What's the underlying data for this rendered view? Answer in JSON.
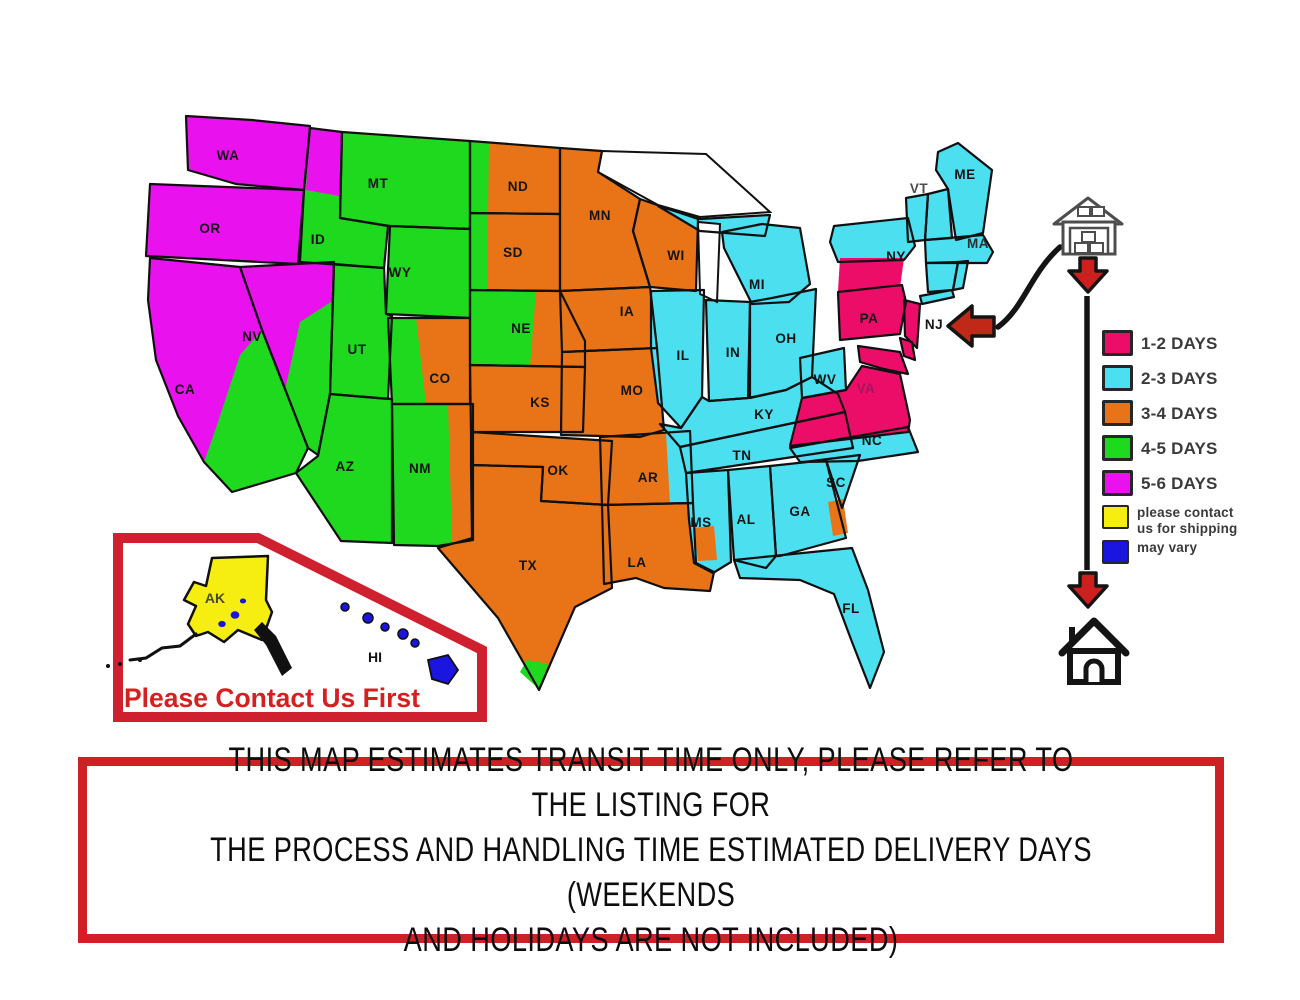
{
  "legend": {
    "items": [
      {
        "zone": "1-2",
        "label": "1-2 DAYS",
        "color": "#EB0D68"
      },
      {
        "zone": "2-3",
        "label": "2-3 DAYS",
        "color": "#4BDFF0"
      },
      {
        "zone": "3-4",
        "label": "3-4 DAYS",
        "color": "#E87417"
      },
      {
        "zone": "4-5",
        "label": "4-5 DAYS",
        "color": "#1FD91F"
      },
      {
        "zone": "5-6",
        "label": "5-6 DAYS",
        "color": "#E911ED"
      },
      {
        "zone": "contact",
        "label": "please contact\nus for shipping",
        "color": "#F6EE10"
      },
      {
        "zone": "vary",
        "label": "may vary",
        "color": "#1A16E0"
      }
    ]
  },
  "map": {
    "states": [
      {
        "id": "WA",
        "label": "WA",
        "zone": "5-6"
      },
      {
        "id": "OR",
        "label": "OR",
        "zone": "5-6"
      },
      {
        "id": "CA",
        "label": "CA",
        "zone": "5-6/4-5"
      },
      {
        "id": "NV",
        "label": "NV",
        "zone": "5-6/4-5"
      },
      {
        "id": "ID",
        "label": "ID",
        "zone": "4-5/5-6"
      },
      {
        "id": "MT",
        "label": "MT",
        "zone": "4-5"
      },
      {
        "id": "WY",
        "label": "WY",
        "zone": "4-5"
      },
      {
        "id": "UT",
        "label": "UT",
        "zone": "4-5"
      },
      {
        "id": "AZ",
        "label": "AZ",
        "zone": "4-5"
      },
      {
        "id": "CO",
        "label": "CO",
        "zone": "4-5/3-4"
      },
      {
        "id": "NM",
        "label": "NM",
        "zone": "4-5/3-4"
      },
      {
        "id": "ND",
        "label": "ND",
        "zone": "3-4/4-5"
      },
      {
        "id": "SD",
        "label": "SD",
        "zone": "3-4/4-5"
      },
      {
        "id": "NE",
        "label": "NE",
        "zone": "3-4/4-5"
      },
      {
        "id": "KS",
        "label": "KS",
        "zone": "3-4"
      },
      {
        "id": "OK",
        "label": "OK",
        "zone": "3-4"
      },
      {
        "id": "TX",
        "label": "TX",
        "zone": "3-4/4-5"
      },
      {
        "id": "MN",
        "label": "MN",
        "zone": "3-4"
      },
      {
        "id": "WI",
        "label": "WI",
        "zone": "3-4"
      },
      {
        "id": "IA",
        "label": "IA",
        "zone": "3-4"
      },
      {
        "id": "MO",
        "label": "MO",
        "zone": "3-4"
      },
      {
        "id": "AR",
        "label": "AR",
        "zone": "3-4/2-3"
      },
      {
        "id": "LA",
        "label": "LA",
        "zone": "3-4"
      },
      {
        "id": "IL",
        "label": "IL",
        "zone": "2-3"
      },
      {
        "id": "IN",
        "label": "IN",
        "zone": "2-3"
      },
      {
        "id": "MI",
        "label": "MI",
        "zone": "2-3"
      },
      {
        "id": "OH",
        "label": "OH",
        "zone": "2-3"
      },
      {
        "id": "KY",
        "label": "KY",
        "zone": "2-3"
      },
      {
        "id": "TN",
        "label": "TN",
        "zone": "2-3"
      },
      {
        "id": "MS",
        "label": "MS",
        "zone": "2-3/3-4"
      },
      {
        "id": "AL",
        "label": "AL",
        "zone": "2-3"
      },
      {
        "id": "GA",
        "label": "GA",
        "zone": "2-3/3-4"
      },
      {
        "id": "FL",
        "label": "FL",
        "zone": "2-3"
      },
      {
        "id": "SC",
        "label": "SC",
        "zone": "2-3"
      },
      {
        "id": "NC",
        "label": "NC",
        "zone": "2-3"
      },
      {
        "id": "VA",
        "label": "VA",
        "zone": "1-2"
      },
      {
        "id": "WV",
        "label": "WV",
        "zone": "2-3"
      },
      {
        "id": "PA",
        "label": "PA",
        "zone": "1-2"
      },
      {
        "id": "NY",
        "label": "NY",
        "zone": "2-3/1-2"
      },
      {
        "id": "NJ",
        "label": "NJ",
        "zone": "1-2"
      },
      {
        "id": "DE",
        "label": "",
        "zone": "1-2"
      },
      {
        "id": "MD",
        "label": "",
        "zone": "1-2"
      },
      {
        "id": "VT",
        "label": "VT",
        "zone": "2-3"
      },
      {
        "id": "NH",
        "label": "",
        "zone": "2-3"
      },
      {
        "id": "ME",
        "label": "ME",
        "zone": "2-3"
      },
      {
        "id": "MA",
        "label": "MA",
        "zone": "2-3"
      },
      {
        "id": "CT",
        "label": "",
        "zone": "2-3"
      },
      {
        "id": "RI",
        "label": "",
        "zone": "2-3"
      }
    ]
  },
  "inset": {
    "ak_label": "AK",
    "hi_label": "HI",
    "note": "Please Contact Us First"
  },
  "disclaimer": {
    "text": "THIS MAP ESTIMATES TRANSIT TIME ONLY, PLEASE REFER TO THE LISTING FOR\nTHE PROCESS AND HANDLING TIME ESTIMATED DELIVERY DAYS (WEEKENDS\nAND HOLIDAYS ARE NOT INCLUDED)"
  }
}
